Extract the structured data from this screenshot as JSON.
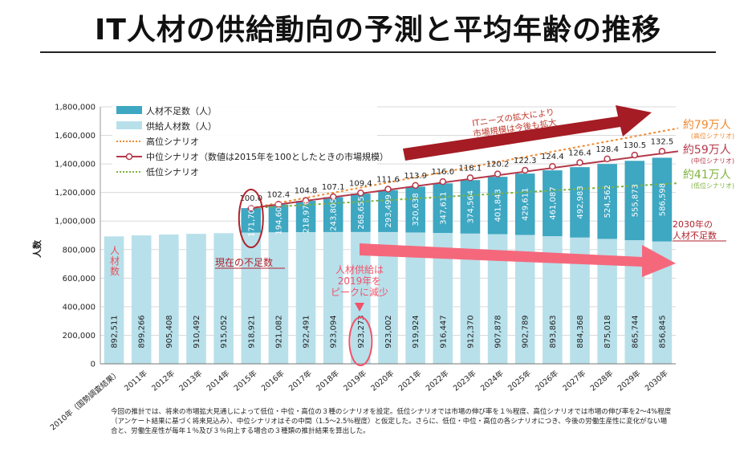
{
  "page": {
    "title": "IT人材の供給動向の予測と平均年齢の推移",
    "footnote": "今回の推計では、将来の市場拡大見通しによって低位・中位・高位の３種のシナリオを設定。低位シナリオでは市場の伸び率を１％程度、高位シナリオでは市場の伸び率を2～4%程度（アンケート結果に基づく将来見込み）、中位シナリオはその中間（1.5～2.5％程度）と仮定した。さらに、低位・中位・高位の各シナリオにつき、今後の労働生産性に変化がない場合と、労働生産性が毎年１％及び３％向上する場合の３種類の推計結果を算出した。"
  },
  "chart_data": {
    "type": "bar",
    "ylabel": "人数",
    "ylim": [
      0,
      1800000
    ],
    "yticks": [
      0,
      200000,
      400000,
      600000,
      800000,
      1000000,
      1200000,
      1400000,
      1600000,
      1800000
    ],
    "ytick_labels": [
      "0",
      "200,000",
      "400,000",
      "600,000",
      "800,000",
      "1,000,000",
      "1,200,000",
      "1,400,000",
      "1,600,000",
      "1,800,000"
    ],
    "categories": [
      "2010年（国勢調査結果）",
      "2011年",
      "2012年",
      "2013年",
      "2014年",
      "2015年",
      "2016年",
      "2017年",
      "2018年",
      "2019年",
      "2020年",
      "2021年",
      "2022年",
      "2023年",
      "2024年",
      "2025年",
      "2026年",
      "2027年",
      "2028年",
      "2029年",
      "2030年"
    ],
    "supply": {
      "name": "供給人材数（人）",
      "color": "#b8e0ea",
      "values": [
        892511,
        899266,
        905408,
        910492,
        915052,
        918921,
        921082,
        922491,
        923094,
        923273,
        923002,
        919924,
        916447,
        912370,
        907878,
        902789,
        893863,
        884368,
        875018,
        865744,
        856845
      ],
      "labels": [
        "892,511",
        "899,266",
        "905,408",
        "910,492",
        "915,052",
        "918,921",
        "921,082",
        "922,491",
        "923,094",
        "923,273",
        "923,002",
        "919,924",
        "916,447",
        "912,370",
        "907,878",
        "902,789",
        "893,863",
        "884,368",
        "875,018",
        "865,744",
        "856,845"
      ]
    },
    "shortage": {
      "name": "人材不足数（人）",
      "color": "#3ea7c2",
      "values": [
        null,
        null,
        null,
        null,
        null,
        171700,
        194608,
        218976,
        243805,
        268655,
        293499,
        320638,
        347611,
        374564,
        401843,
        429611,
        461087,
        492983,
        524562,
        555873,
        586598
      ],
      "labels": [
        "",
        "",
        "",
        "",
        "",
        "171,700",
        "194,608",
        "218,976",
        "243,805",
        "268,655",
        "293,499",
        "320,638",
        "347,611",
        "374,564",
        "401,843",
        "429,611",
        "461,087",
        "492,983",
        "524,562",
        "555,873",
        "586,598"
      ]
    },
    "index_labels": [
      "100.0",
      "102.4",
      "104.8",
      "107.1",
      "109.4",
      "111.6",
      "113.9",
      "116.0",
      "118.1",
      "120.2",
      "122.3",
      "124.4",
      "126.4",
      "128.4",
      "130.5",
      "132.5"
    ],
    "legend": [
      {
        "name": "人材不足数（人）",
        "kind": "bar",
        "color": "#3ea7c2"
      },
      {
        "name": "供給人材数（人）",
        "kind": "bar",
        "color": "#b8e0ea"
      },
      {
        "name": "高位シナリオ",
        "kind": "dotted",
        "color": "#f08a30"
      },
      {
        "name": "中位シナリオ（数値は2015年を100としたときの市場規模）",
        "kind": "line-marker",
        "color": "#b5394a"
      },
      {
        "name": "低位シナリオ",
        "kind": "dotted",
        "color": "#7fb23d"
      }
    ],
    "legend_position": "top-left",
    "scenarios": {
      "high": {
        "name": "高位シナリオ",
        "color": "#f08a30",
        "start": 1090621,
        "end": 1650000,
        "end_label": "約79万人",
        "end_sub": "(高位シナリオ)"
      },
      "middle": {
        "name": "中位シナリオ",
        "color": "#b5394a",
        "start": 1090621,
        "end": 1443443,
        "end_label": "約59万人",
        "end_sub": "(中位シナリオ)"
      },
      "low": {
        "name": "低位シナリオ",
        "color": "#7fb23d",
        "start": 1090621,
        "end": 1265000,
        "end_label": "約41万人",
        "end_sub": "(低位シナリオ)"
      }
    },
    "annotations": {
      "it_needs": [
        "ITニーズの拡大により",
        "市場規模は今後も拡大"
      ],
      "current_shortage": "現在の不足数",
      "supply_peak": [
        "人材供給は",
        "2019年を",
        "ピークに減少"
      ],
      "left_axis_note": [
        "人",
        "材",
        "数"
      ],
      "shortage_2030": [
        "2030年の",
        "人材不足数"
      ]
    }
  }
}
